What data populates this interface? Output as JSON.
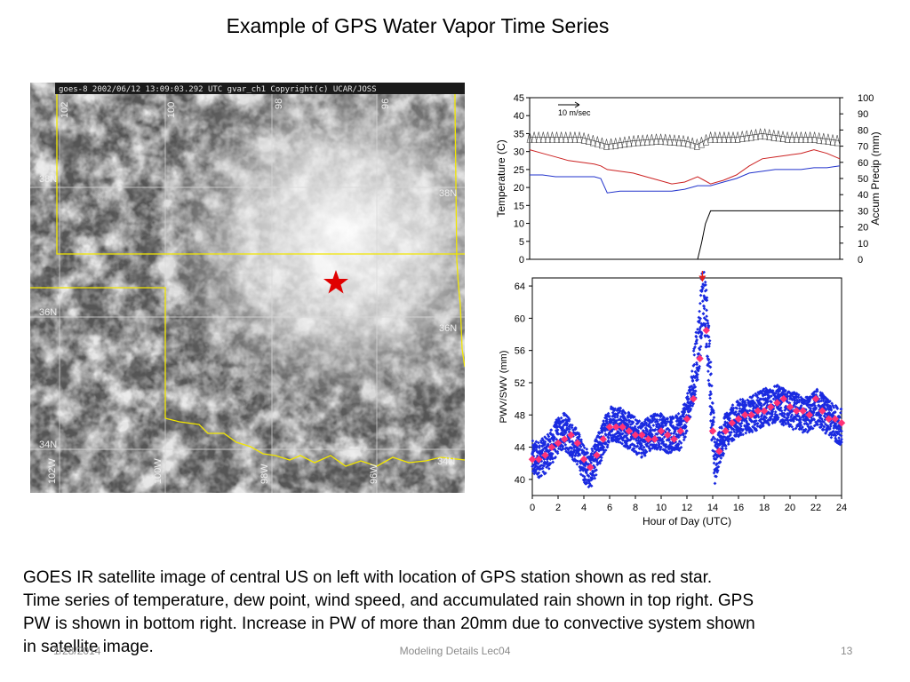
{
  "slide": {
    "title": "Example of GPS Water Vapor Time Series",
    "caption_lines": [
      "GOES IR satellite image of central US on left with location of GPS station shown as red star.",
      "Time series of temperature, dew point, wind speed, and accumulated rain shown in top right. GPS",
      "PW is shown in bottom right. Increase in PW of more than 20mm due to convective system shown",
      "in satellite image."
    ],
    "footer_date": "1/28/2014",
    "footer_center": "Modeling Details Lec04",
    "page_number": "13"
  },
  "satellite": {
    "header": "goes-8 2002/06/12 13:09:03.292 UTC gvar_ch1 Copyright(c) UCAR/JOSS",
    "lat_labels": [
      "38N",
      "36N",
      "34N",
      "38N",
      "36N",
      "34N"
    ],
    "lon_labels": [
      "102W",
      "100W",
      "98W",
      "96W",
      "102",
      "100",
      "98",
      "96"
    ],
    "station_marker_color": "#e00000",
    "marker_icon": "red-star-icon"
  },
  "chart_data": [
    {
      "type": "line",
      "xlim": [
        0,
        24
      ],
      "ylabel": "Temperature (C)",
      "ylabel_right": "Accum  Precip (mm)",
      "ylim": [
        0,
        45
      ],
      "y2lim": [
        0,
        100
      ],
      "yticks": [
        0,
        5,
        10,
        15,
        20,
        25,
        30,
        35,
        40,
        45
      ],
      "y2ticks": [
        0,
        10,
        20,
        30,
        40,
        50,
        60,
        70,
        80,
        90,
        100
      ],
      "wind_reference_label": "10 m/sec",
      "colors": {
        "temperature": "#cc2222",
        "dewpoint": "#2233cc",
        "precip": "#000000",
        "wind": "#444444"
      },
      "series": [
        {
          "key": "temperature",
          "x": [
            0,
            1,
            2,
            3,
            4,
            5,
            5.5,
            6,
            7,
            8,
            9,
            10,
            11,
            12,
            13,
            13.5,
            14,
            15,
            16,
            17,
            18,
            19,
            20,
            21,
            22,
            23,
            24
          ],
          "values": [
            30.5,
            29.5,
            28.5,
            27.5,
            27,
            26.5,
            26,
            25,
            24.5,
            24,
            23,
            22,
            21,
            21.5,
            23,
            22,
            21,
            22,
            23.5,
            26,
            28,
            28.5,
            29,
            29.5,
            30.5,
            29.5,
            28
          ]
        },
        {
          "key": "dewpoint",
          "x": [
            0,
            1,
            2,
            3,
            4,
            5,
            5.5,
            6,
            7,
            8,
            9,
            10,
            11,
            12,
            13,
            13.5,
            14,
            15,
            16,
            17,
            18,
            19,
            20,
            21,
            22,
            23,
            24
          ],
          "values": [
            23.5,
            23.5,
            23,
            23,
            23,
            23,
            22.5,
            18.5,
            19,
            19,
            19,
            19,
            19,
            19.5,
            20.5,
            20.5,
            20.5,
            21.5,
            22.5,
            24,
            24.5,
            25,
            25,
            25,
            25.5,
            25.5,
            26
          ]
        },
        {
          "key": "precip",
          "x": [
            0,
            13,
            13.3,
            13.6,
            14,
            24
          ],
          "values": [
            0,
            0,
            10,
            22,
            30,
            30
          ]
        },
        {
          "key": "wind",
          "x": [
            0,
            2,
            4,
            6,
            8,
            10,
            12,
            13,
            14,
            16,
            18,
            20,
            22,
            24
          ],
          "values": [
            34,
            34,
            34,
            32,
            33,
            33.5,
            33,
            32,
            34,
            34,
            35,
            34,
            34,
            33
          ]
        }
      ]
    },
    {
      "type": "scatter",
      "xlabel": "Hour of Day (UTC)",
      "ylabel": "PWV/SWV (mm)",
      "xlim": [
        0,
        24
      ],
      "ylim": [
        38,
        65
      ],
      "xticks": [
        0,
        2,
        4,
        6,
        8,
        10,
        12,
        14,
        16,
        18,
        20,
        22,
        24
      ],
      "yticks": [
        40,
        44,
        48,
        52,
        56,
        60,
        64
      ],
      "swv_color": "#1a2ae0",
      "pwv_color": "#ff3377",
      "arrow_color": "#e02020",
      "arrow_x": 13.2,
      "swv_envelope": {
        "x": [
          0,
          0.5,
          1,
          1.5,
          2,
          2.5,
          3,
          3.5,
          4,
          4.5,
          5,
          5.5,
          6,
          6.5,
          7,
          7.5,
          8,
          8.5,
          9,
          9.5,
          10,
          10.5,
          11,
          11.5,
          12,
          12.5,
          13,
          13.2,
          13.5,
          13.8,
          14,
          14.2,
          14.5,
          15,
          15.5,
          16,
          16.5,
          17,
          17.5,
          18,
          18.5,
          19,
          19.5,
          20,
          20.5,
          21,
          21.5,
          22,
          22.5,
          23,
          23.5,
          24
        ],
        "values": [
          42.5,
          42.5,
          43,
          44,
          45.5,
          46,
          45,
          44,
          42,
          41,
          43,
          45,
          47,
          47,
          46.5,
          46,
          45.5,
          45,
          45.5,
          46,
          46,
          45.5,
          45.5,
          46,
          48,
          52,
          58,
          63,
          60,
          53,
          46,
          42,
          44,
          46,
          47,
          47.5,
          48,
          48,
          48.5,
          49,
          49,
          49.5,
          49,
          48.5,
          48.5,
          48,
          48,
          49,
          48.5,
          47.5,
          47,
          46.5
        ]
      },
      "series": [
        {
          "name": "PWV",
          "x": [
            0,
            0.5,
            1,
            1.5,
            2,
            2.5,
            3,
            3.5,
            4,
            4.5,
            5,
            5.5,
            6,
            6.5,
            7,
            7.5,
            8,
            8.5,
            9,
            9.5,
            10,
            10.5,
            11,
            11.5,
            12,
            12.5,
            13,
            13.5,
            14,
            14.5,
            15,
            15.5,
            16,
            16.5,
            17,
            17.5,
            18,
            18.5,
            19,
            19.5,
            20,
            20.5,
            21,
            21.5,
            22,
            22.5,
            23,
            23.5,
            24
          ],
          "values": [
            42.5,
            42.5,
            43,
            44,
            44.5,
            45,
            45.5,
            44.5,
            42.5,
            41.5,
            43,
            45,
            46.5,
            46.5,
            46.5,
            46,
            45.5,
            45.5,
            45,
            45,
            46,
            45.5,
            45,
            46,
            47.5,
            50,
            55,
            58.5,
            46,
            43.5,
            46,
            47,
            47.5,
            48,
            48,
            48.5,
            48.5,
            49,
            49.5,
            50,
            49,
            48.5,
            48.5,
            48,
            50,
            48.5,
            47.5,
            47.5,
            47
          ]
        }
      ]
    }
  ]
}
